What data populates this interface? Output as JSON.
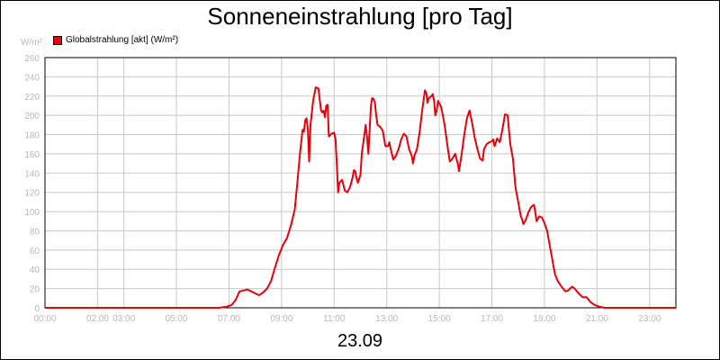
{
  "chart_data": {
    "type": "line",
    "title": "Sonneneinstrahlung [pro Tag]",
    "unit_label": "W/m²",
    "date_label": "23.09",
    "series": [
      {
        "name": "Globalstrahlung [akt] (W/m²)",
        "color": "#e8000b",
        "points": [
          [
            0.0,
            0
          ],
          [
            1.0,
            0
          ],
          [
            2.0,
            0
          ],
          [
            3.0,
            0
          ],
          [
            4.0,
            0
          ],
          [
            5.0,
            0
          ],
          [
            6.0,
            0
          ],
          [
            6.6,
            0
          ],
          [
            6.9,
            1
          ],
          [
            7.1,
            3
          ],
          [
            7.25,
            8
          ],
          [
            7.4,
            17
          ],
          [
            7.55,
            18
          ],
          [
            7.7,
            19
          ],
          [
            7.85,
            17
          ],
          [
            8.0,
            15
          ],
          [
            8.15,
            13
          ],
          [
            8.3,
            16
          ],
          [
            8.45,
            20
          ],
          [
            8.6,
            28
          ],
          [
            8.75,
            42
          ],
          [
            8.9,
            55
          ],
          [
            9.05,
            65
          ],
          [
            9.2,
            72
          ],
          [
            9.35,
            85
          ],
          [
            9.5,
            102
          ],
          [
            9.6,
            130
          ],
          [
            9.7,
            160
          ],
          [
            9.8,
            185
          ],
          [
            9.85,
            183
          ],
          [
            9.9,
            195
          ],
          [
            9.95,
            197
          ],
          [
            10.0,
            185
          ],
          [
            10.05,
            152
          ],
          [
            10.1,
            190
          ],
          [
            10.2,
            215
          ],
          [
            10.3,
            229
          ],
          [
            10.4,
            228
          ],
          [
            10.5,
            205
          ],
          [
            10.55,
            203
          ],
          [
            10.6,
            205
          ],
          [
            10.65,
            198
          ],
          [
            10.7,
            210
          ],
          [
            10.75,
            211
          ],
          [
            10.8,
            178
          ],
          [
            10.9,
            181
          ],
          [
            11.0,
            182
          ],
          [
            11.05,
            175
          ],
          [
            11.1,
            150
          ],
          [
            11.15,
            120
          ],
          [
            11.2,
            130
          ],
          [
            11.3,
            133
          ],
          [
            11.35,
            128
          ],
          [
            11.4,
            122
          ],
          [
            11.5,
            120
          ],
          [
            11.6,
            125
          ],
          [
            11.7,
            135
          ],
          [
            11.75,
            143
          ],
          [
            11.8,
            142
          ],
          [
            11.85,
            135
          ],
          [
            11.9,
            130
          ],
          [
            12.0,
            138
          ],
          [
            12.05,
            160
          ],
          [
            12.15,
            180
          ],
          [
            12.2,
            190
          ],
          [
            12.25,
            178
          ],
          [
            12.3,
            160
          ],
          [
            12.35,
            185
          ],
          [
            12.4,
            210
          ],
          [
            12.45,
            218
          ],
          [
            12.5,
            217
          ],
          [
            12.55,
            213
          ],
          [
            12.6,
            200
          ],
          [
            12.65,
            190
          ],
          [
            12.75,
            188
          ],
          [
            12.85,
            184
          ],
          [
            12.95,
            168
          ],
          [
            13.05,
            168
          ],
          [
            13.1,
            172
          ],
          [
            13.15,
            165
          ],
          [
            13.25,
            154
          ],
          [
            13.35,
            158
          ],
          [
            13.45,
            165
          ],
          [
            13.55,
            175
          ],
          [
            13.65,
            181
          ],
          [
            13.75,
            178
          ],
          [
            13.85,
            165
          ],
          [
            13.95,
            158
          ],
          [
            14.0,
            150
          ],
          [
            14.05,
            158
          ],
          [
            14.15,
            165
          ],
          [
            14.25,
            182
          ],
          [
            14.35,
            205
          ],
          [
            14.45,
            226
          ],
          [
            14.5,
            224
          ],
          [
            14.55,
            213
          ],
          [
            14.6,
            218
          ],
          [
            14.7,
            220
          ],
          [
            14.75,
            222
          ],
          [
            14.8,
            215
          ],
          [
            14.85,
            200
          ],
          [
            14.9,
            205
          ],
          [
            14.95,
            215
          ],
          [
            15.05,
            210
          ],
          [
            15.1,
            205
          ],
          [
            15.2,
            190
          ],
          [
            15.3,
            170
          ],
          [
            15.4,
            152
          ],
          [
            15.5,
            155
          ],
          [
            15.6,
            160
          ],
          [
            15.7,
            150
          ],
          [
            15.75,
            142
          ],
          [
            15.85,
            160
          ],
          [
            15.95,
            180
          ],
          [
            16.05,
            197
          ],
          [
            16.15,
            205
          ],
          [
            16.25,
            192
          ],
          [
            16.35,
            176
          ],
          [
            16.45,
            165
          ],
          [
            16.55,
            155
          ],
          [
            16.65,
            153
          ],
          [
            16.7,
            165
          ],
          [
            16.8,
            170
          ],
          [
            16.9,
            172
          ],
          [
            17.0,
            173
          ],
          [
            17.05,
            175
          ],
          [
            17.1,
            168
          ],
          [
            17.2,
            176
          ],
          [
            17.3,
            172
          ],
          [
            17.4,
            185
          ],
          [
            17.5,
            201
          ],
          [
            17.6,
            200
          ],
          [
            17.65,
            185
          ],
          [
            17.7,
            170
          ],
          [
            17.8,
            155
          ],
          [
            17.9,
            125
          ],
          [
            18.0,
            110
          ],
          [
            18.1,
            95
          ],
          [
            18.15,
            92
          ],
          [
            18.2,
            87
          ],
          [
            18.3,
            92
          ],
          [
            18.4,
            100
          ],
          [
            18.5,
            105
          ],
          [
            18.6,
            107
          ],
          [
            18.65,
            100
          ],
          [
            18.7,
            90
          ],
          [
            18.8,
            95
          ],
          [
            18.9,
            94
          ],
          [
            19.0,
            88
          ],
          [
            19.1,
            80
          ],
          [
            19.2,
            65
          ],
          [
            19.3,
            50
          ],
          [
            19.4,
            35
          ],
          [
            19.5,
            28
          ],
          [
            19.65,
            22
          ],
          [
            19.8,
            17
          ],
          [
            19.9,
            18
          ],
          [
            20.05,
            22
          ],
          [
            20.15,
            20
          ],
          [
            20.3,
            15
          ],
          [
            20.45,
            11
          ],
          [
            20.6,
            11
          ],
          [
            20.75,
            6
          ],
          [
            20.9,
            3
          ],
          [
            21.1,
            1
          ],
          [
            21.3,
            0
          ],
          [
            22.0,
            0
          ],
          [
            23.0,
            0
          ],
          [
            24.0,
            0
          ]
        ]
      }
    ],
    "xlim": [
      0,
      24
    ],
    "ylim": [
      0,
      260
    ],
    "x_ticks": [
      {
        "value": 0,
        "label": "00:00"
      },
      {
        "value": 2,
        "label": "02:00"
      },
      {
        "value": 3,
        "label": "03:00"
      },
      {
        "value": 5,
        "label": "05:00"
      },
      {
        "value": 7,
        "label": "07:00"
      },
      {
        "value": 9,
        "label": "09:00"
      },
      {
        "value": 11,
        "label": "11:00"
      },
      {
        "value": 13,
        "label": "13:00"
      },
      {
        "value": 15,
        "label": "15:00"
      },
      {
        "value": 17,
        "label": "17:00"
      },
      {
        "value": 19,
        "label": "19:00"
      },
      {
        "value": 21,
        "label": "21:00"
      },
      {
        "value": 23,
        "label": "23:00"
      }
    ],
    "x_grid_values": [
      0,
      2,
      3,
      5,
      7,
      9,
      11,
      13,
      15,
      17,
      19,
      21,
      23
    ],
    "y_ticks": [
      0,
      20,
      40,
      60,
      80,
      100,
      120,
      140,
      160,
      180,
      200,
      220,
      240,
      260
    ],
    "grid": true,
    "legend_position": "top-left"
  }
}
